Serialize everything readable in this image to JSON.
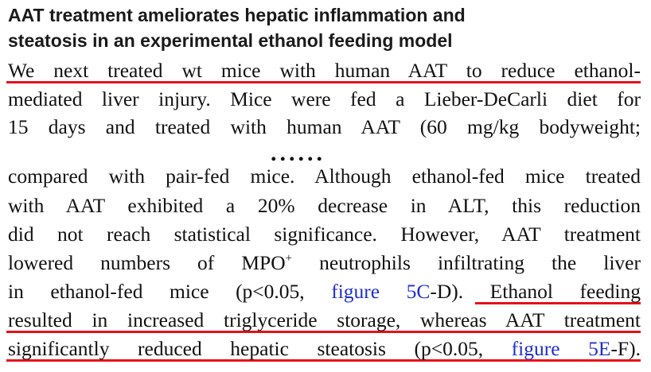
{
  "heading": {
    "lines": [
      "AAT treatment ameliorates hepatic inflammation and",
      "steatosis in an experimental ethanol feeding model"
    ]
  },
  "paragraphs": [
    {
      "lines": [
        [
          "We next treated wt mice with human AAT to reduce ethanol-"
        ],
        [
          "mediated liver injury. Mice were fed a Lieber-DeCarli diet for"
        ],
        [
          "15 days and treated with human AAT (60 mg/kg bodyweight;"
        ]
      ]
    },
    {
      "lines": [
        [
          "compared with pair-fed mice. Although ethanol-fed mice treated"
        ],
        [
          "with AAT exhibited a 20% decrease in ALT, this reduction"
        ],
        [
          "did not reach statistical significance. However, AAT treatment"
        ],
        [
          "lowered numbers of MPO",
          {
            "text": "+",
            "kind": "sup"
          },
          " neutrophils infiltrating the liver"
        ],
        [
          "in ethanol-fed mice (p<0.05, ",
          {
            "text": "figure 5C",
            "kind": "link"
          },
          "-D). Ethanol feeding"
        ],
        [
          "resulted in increased triglyceride storage, whereas AAT treatment"
        ],
        [
          "significantly reduced hepatic steatosis (p<0.05, ",
          {
            "text": "figure 5E",
            "kind": "link"
          },
          "-F)."
        ]
      ]
    }
  ],
  "ellipsis": "......"
}
